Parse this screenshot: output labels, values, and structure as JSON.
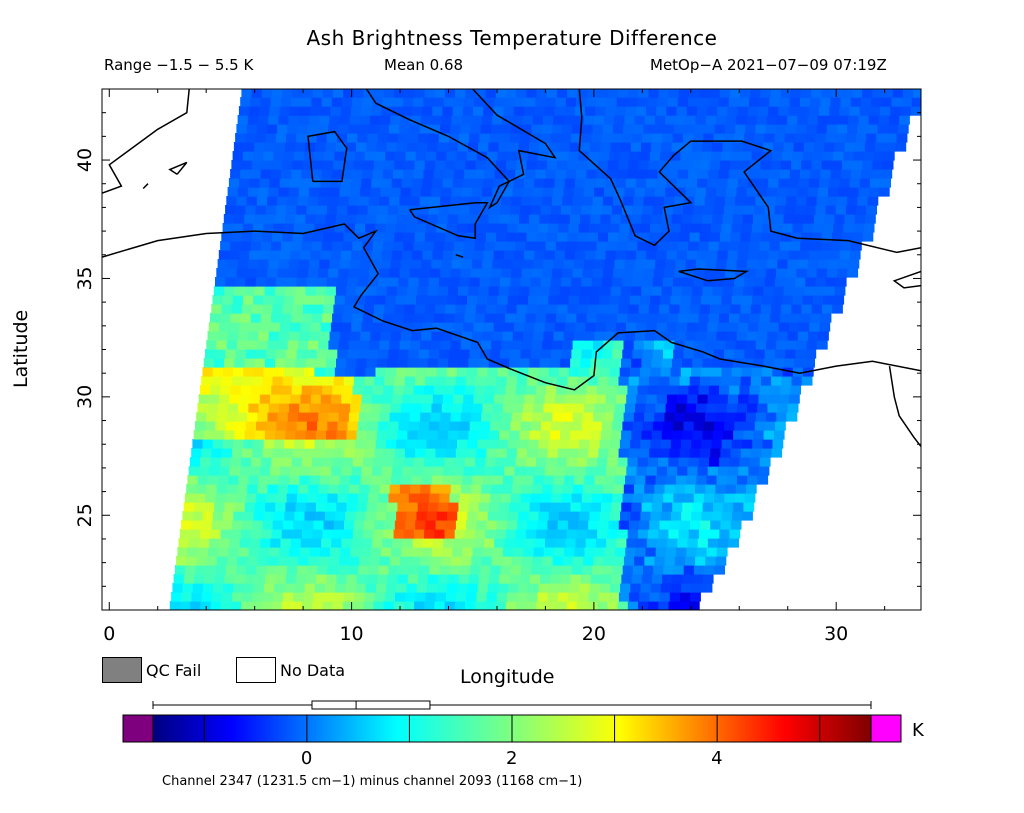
{
  "title": "Ash Brightness Temperature Difference",
  "range_text": "Range −1.5 − 5.5 K",
  "mean_text": "Mean 0.68",
  "satellite_text": "MetOp−A 2021−07−09 07:19Z",
  "axes": {
    "xlabel": "Longitude",
    "ylabel": "Latitude",
    "xlim": [
      -0.3,
      33.5
    ],
    "ylim": [
      21.0,
      43.0
    ],
    "x_ticks": [
      0,
      10,
      20,
      30
    ],
    "y_ticks": [
      25,
      30,
      35,
      40
    ]
  },
  "legend": {
    "qc_fail": "QC Fail",
    "no_data": "No Data",
    "qc_fail_color": "#808080",
    "no_data_color": "#ffffff"
  },
  "colorbar": {
    "unit": "K",
    "min": -1.5,
    "max": 5.5,
    "ticks": [
      0,
      2,
      4
    ],
    "underflow_color": "#7f007f",
    "overflow_color": "#ff00ff",
    "box_plot": {
      "whisker_low": -1.5,
      "q1": 0.05,
      "median": 0.48,
      "q3": 1.2,
      "whisker_high": 5.5
    }
  },
  "channel_text": "Channel 2347 (1231.5 cm−1) minus channel 2093 (1168 cm−1)",
  "swath": {
    "edges": {
      "west_at_lat_21": 2.5,
      "west_at_lat_43": 5.5,
      "east_at_lat_21": 24.0,
      "east_at_lat_43": 33.5
    }
  }
}
